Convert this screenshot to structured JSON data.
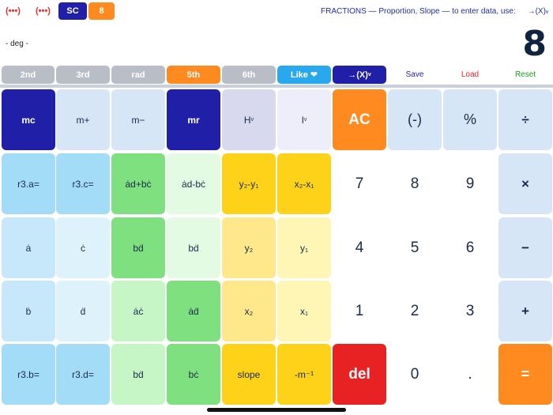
{
  "topbar": {
    "dots1": "(•••)",
    "dots2": "(•••)",
    "sc_label": "SC",
    "count_label": "8",
    "info_text": "FRACTIONS — Proportion, Slope — to enter data, use:",
    "x_button": "→(X)",
    "x_sub": "v"
  },
  "display": {
    "mode": "- deg -",
    "value": "8"
  },
  "mode_row": {
    "b2nd": "2nd",
    "b3rd": "3rd",
    "rad": "rad",
    "b5th": "5th",
    "b6th": "6th",
    "like": "Like ❤",
    "xbtn": "→(X)",
    "xbtn_sub": "v",
    "save": "Save",
    "load": "Load",
    "reset": "Reset"
  },
  "colors": {
    "navy": "#1f1fa8",
    "orange": "#ff8a1f",
    "red": "#e82222",
    "save": "#1f1fa8",
    "load": "#e82222",
    "reset": "#1aa01a"
  },
  "keys": {
    "row1": [
      "mc",
      "m+",
      "m−",
      "mr",
      "H",
      "I",
      "AC",
      "(-)",
      "%",
      "÷"
    ],
    "row1_sub": [
      "",
      "",
      "",
      "",
      "v",
      "v",
      "",
      "",
      "",
      ""
    ],
    "row2": [
      "r3.a=",
      "r3.c=",
      "ȧd+bċ",
      "ȧd-bċ",
      "y₂-y₁",
      "x₂-x₁",
      "",
      "7",
      "8",
      "9",
      "×"
    ],
    "row3": [
      "ȧ",
      "ċ",
      "bḋ",
      "bḋ",
      "y₂",
      "y₁",
      "",
      "4",
      "5",
      "6",
      "−"
    ],
    "row4": [
      "ḃ",
      "ḋ",
      "ȧċ",
      "ȧḋ",
      "x₂",
      "x₁",
      "",
      "1",
      "2",
      "3",
      "+"
    ],
    "row5": [
      "r3.b=",
      "r3.d=",
      "bḋ",
      "bċ",
      "slope",
      "-m⁻¹",
      "del",
      "0",
      ".",
      "="
    ]
  }
}
